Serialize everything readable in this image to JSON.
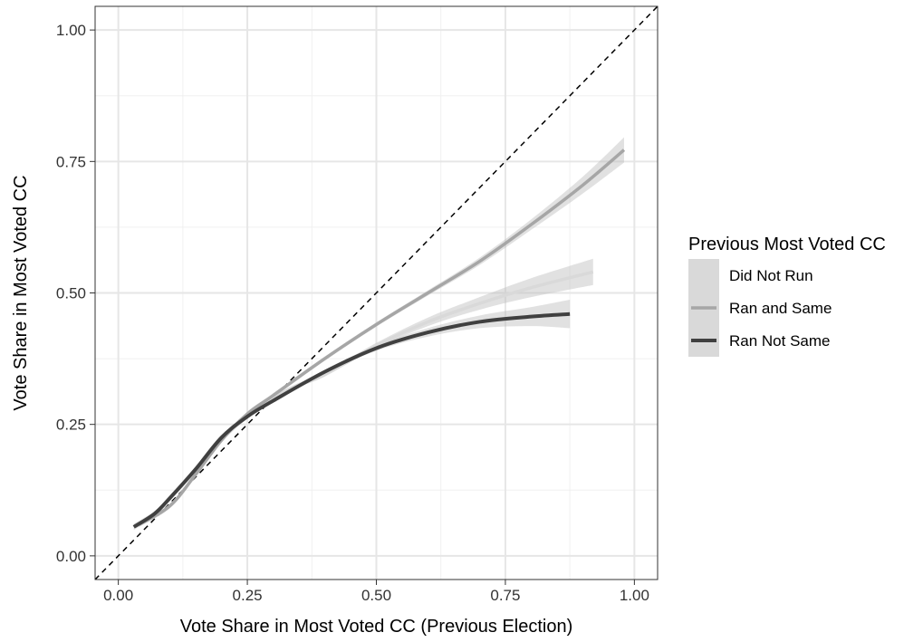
{
  "chart_data": {
    "type": "line",
    "title": "",
    "xlabel": "Vote Share in Most Voted CC (Previous Election)",
    "ylabel": "Vote Share in Most Voted CC",
    "xlim": [
      -0.045,
      1.045
    ],
    "ylim": [
      -0.045,
      1.045
    ],
    "x_ticks": [
      0,
      0.25,
      0.5,
      0.75,
      1.0
    ],
    "x_tick_labels": [
      "0.00",
      "0.25",
      "0.50",
      "0.75",
      "1.00"
    ],
    "y_ticks": [
      0,
      0.25,
      0.5,
      0.75,
      1.0
    ],
    "y_tick_labels": [
      "0.00",
      "0.25",
      "0.50",
      "0.75",
      "1.00"
    ],
    "grid": true,
    "reference_line": {
      "type": "dashed",
      "slope": 1,
      "intercept": 0
    },
    "legend": {
      "title": "Previous Most Voted CC",
      "position": "right"
    },
    "series": [
      {
        "name": "Did Not Run",
        "color": "#d9d9d9",
        "x": [
          0.04,
          0.1,
          0.15,
          0.2,
          0.25,
          0.3,
          0.35,
          0.4,
          0.5,
          0.6,
          0.7,
          0.8,
          0.92
        ],
        "y": [
          0.06,
          0.095,
          0.155,
          0.22,
          0.265,
          0.3,
          0.325,
          0.345,
          0.4,
          0.445,
          0.48,
          0.51,
          0.54
        ],
        "band": [
          0.005,
          0.004,
          0.004,
          0.004,
          0.004,
          0.004,
          0.004,
          0.004,
          0.005,
          0.008,
          0.012,
          0.018,
          0.025
        ]
      },
      {
        "name": "Ran and Same",
        "color": "#a6a6a6",
        "x": [
          0.04,
          0.1,
          0.15,
          0.2,
          0.25,
          0.3,
          0.4,
          0.5,
          0.6,
          0.7,
          0.8,
          0.9,
          0.98
        ],
        "y": [
          0.06,
          0.095,
          0.155,
          0.22,
          0.27,
          0.305,
          0.375,
          0.44,
          0.5,
          0.56,
          0.63,
          0.705,
          0.772
        ],
        "band": [
          0.005,
          0.004,
          0.004,
          0.004,
          0.004,
          0.004,
          0.004,
          0.004,
          0.005,
          0.007,
          0.01,
          0.016,
          0.024
        ]
      },
      {
        "name": "Ran Not Same",
        "color": "#404040",
        "x": [
          0.03,
          0.07,
          0.1,
          0.15,
          0.2,
          0.25,
          0.3,
          0.4,
          0.5,
          0.6,
          0.7,
          0.8,
          0.875
        ],
        "y": [
          0.055,
          0.08,
          0.11,
          0.165,
          0.225,
          0.265,
          0.295,
          0.35,
          0.395,
          0.425,
          0.445,
          0.455,
          0.46
        ],
        "band": [
          0.006,
          0.005,
          0.004,
          0.004,
          0.004,
          0.004,
          0.004,
          0.004,
          0.005,
          0.008,
          0.012,
          0.018,
          0.027
        ]
      }
    ]
  }
}
